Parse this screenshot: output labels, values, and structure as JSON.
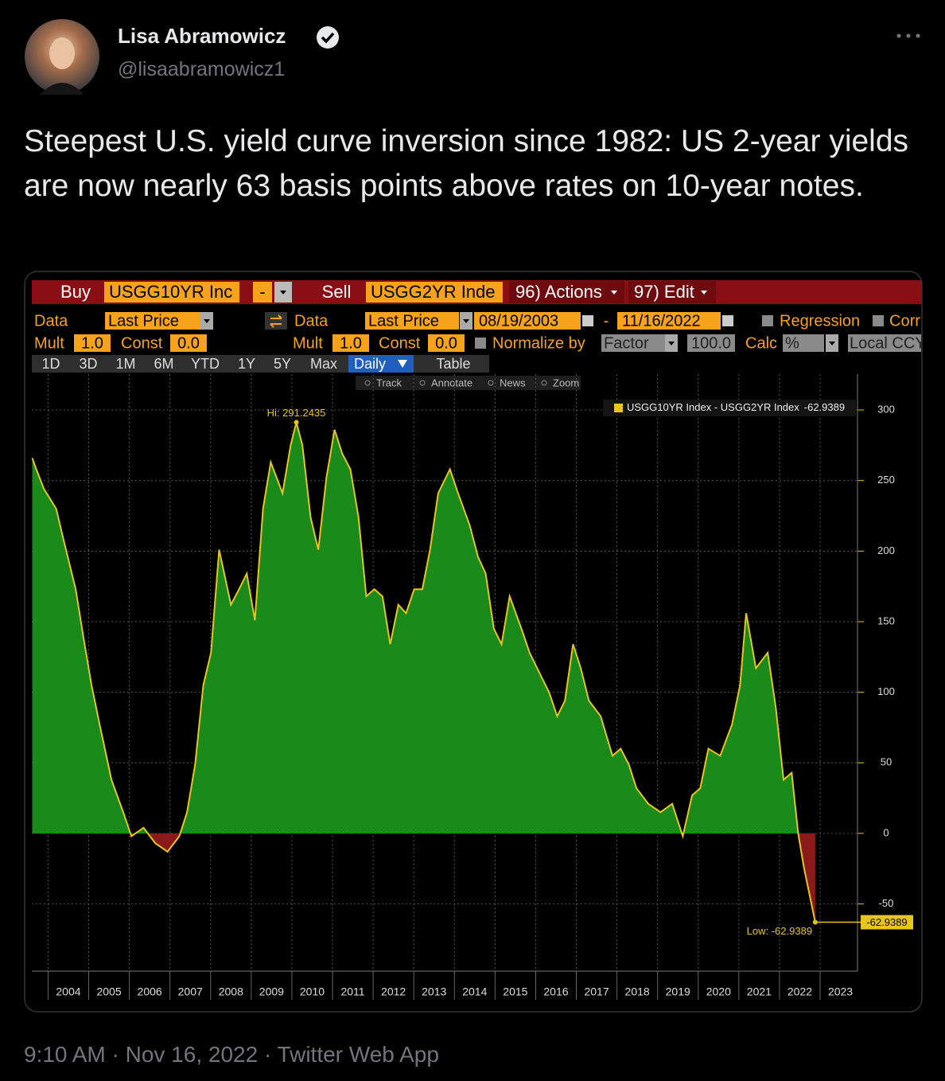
{
  "tweet": {
    "name": "Lisa Abramowicz",
    "handle": "@lisaabramowicz1",
    "text": "Steepest U.S. yield curve inversion since 1982: US 2-year yields are now nearly 63 basis points above rates on 10-year notes.",
    "footer": "9:10 AM · Nov 16, 2022 · Twitter Web App"
  },
  "terminal": {
    "buy": "Buy",
    "buy_security": "USGG10YR Inc",
    "operator": "-",
    "sell": "Sell",
    "sell_security": "USGG2YR Inde",
    "actions": "96) Actions",
    "edit": "97) Edit",
    "data_label_1": "Data",
    "field_1": "Last Price",
    "data_label_2": "Data",
    "field_2": "Last Price",
    "start_date": "08/19/2003",
    "date_separator": "-",
    "end_date": "11/16/2022",
    "regression": "Regression",
    "corr": "Corr",
    "mult_label_1": "Mult",
    "mult_1": "1.0",
    "const_label_1": "Const",
    "const_1": "0.0",
    "mult_label_2": "Mult",
    "mult_2": "1.0",
    "const_label_2": "Const",
    "const_2": "0.0",
    "normalize_by": "Normalize by",
    "normalize_field": "Factor",
    "factor": "100.0",
    "calc": "Calc",
    "calc_field": "%",
    "currency": "Local CCY",
    "periods": [
      "1D",
      "3D",
      "1M",
      "6M",
      "YTD",
      "1Y",
      "5Y",
      "Max"
    ],
    "frequency": "Daily",
    "table": "Table",
    "tools": [
      "Track",
      "Annotate",
      "News",
      "Zoom"
    ]
  },
  "chart_data": {
    "type": "area",
    "annotations": {
      "high": "Hi: 291.2435",
      "low": "Low: -62.9389"
    },
    "x": [
      2003.61,
      2003.71,
      2003.9,
      2004.2,
      2004.39,
      2004.68,
      2004.87,
      2005.07,
      2005.27,
      2005.56,
      2005.85,
      2006.05,
      2006.35,
      2006.64,
      2006.94,
      2007.23,
      2007.42,
      2007.62,
      2007.82,
      2008.01,
      2008.21,
      2008.5,
      2008.7,
      2008.89,
      2009.09,
      2009.29,
      2009.48,
      2009.77,
      2009.97,
      2010.11,
      2010.26,
      2010.46,
      2010.65,
      2010.85,
      2011.05,
      2011.24,
      2011.44,
      2011.64,
      2011.83,
      2012.03,
      2012.23,
      2012.42,
      2012.62,
      2012.81,
      2013.01,
      2013.21,
      2013.4,
      2013.6,
      2013.89,
      2014.09,
      2014.38,
      2014.58,
      2014.77,
      2014.97,
      2015.16,
      2015.36,
      2015.65,
      2015.85,
      2016.14,
      2016.33,
      2016.53,
      2016.72,
      2016.92,
      2017.11,
      2017.31,
      2017.6,
      2017.89,
      2018.09,
      2018.29,
      2018.48,
      2018.77,
      2019.07,
      2019.36,
      2019.62,
      2019.85,
      2020.05,
      2020.25,
      2020.54,
      2020.83,
      2021.03,
      2021.18,
      2021.42,
      2021.71,
      2021.91,
      2022.1,
      2022.3,
      2022.46,
      2022.6,
      2022.88
    ],
    "series": [
      {
        "name": "USGG10YR Index - USGG2YR Index",
        "color": "#e8c51a",
        "fill_positive": "#1a8a1a",
        "fill_negative": "#8a1a1a",
        "values": [
          266,
          258,
          244,
          230,
          207,
          173,
          139,
          105,
          77,
          38,
          15,
          -2,
          4,
          -7,
          -13,
          -2,
          15,
          49,
          105,
          128,
          201,
          162,
          173,
          184,
          151,
          230,
          263,
          241,
          275,
          291.2435,
          275,
          224,
          201,
          252,
          286,
          269,
          258,
          224,
          168,
          173,
          168,
          134,
          162,
          156,
          173,
          173,
          201,
          241,
          258,
          241,
          218,
          196,
          184,
          145,
          134,
          168,
          145,
          128,
          111,
          100,
          83,
          94,
          134,
          117,
          94,
          83,
          55,
          60,
          49,
          32,
          21,
          15,
          21,
          -2,
          27,
          32,
          60,
          55,
          77,
          105,
          156,
          117,
          128,
          89,
          38,
          43,
          0,
          -24,
          -62.9389
        ]
      }
    ],
    "xlim": [
      2003.6,
      2023.92
    ],
    "xticks": [
      2004,
      2005,
      2006,
      2007,
      2008,
      2009,
      2010,
      2011,
      2012,
      2013,
      2014,
      2015,
      2016,
      2017,
      2018,
      2019,
      2020,
      2021,
      2022,
      2023
    ],
    "ylim": [
      -97.6,
      325.4
    ],
    "yticks": [
      -50,
      0,
      50,
      100,
      150,
      200,
      250,
      300
    ],
    "grid": true
  }
}
